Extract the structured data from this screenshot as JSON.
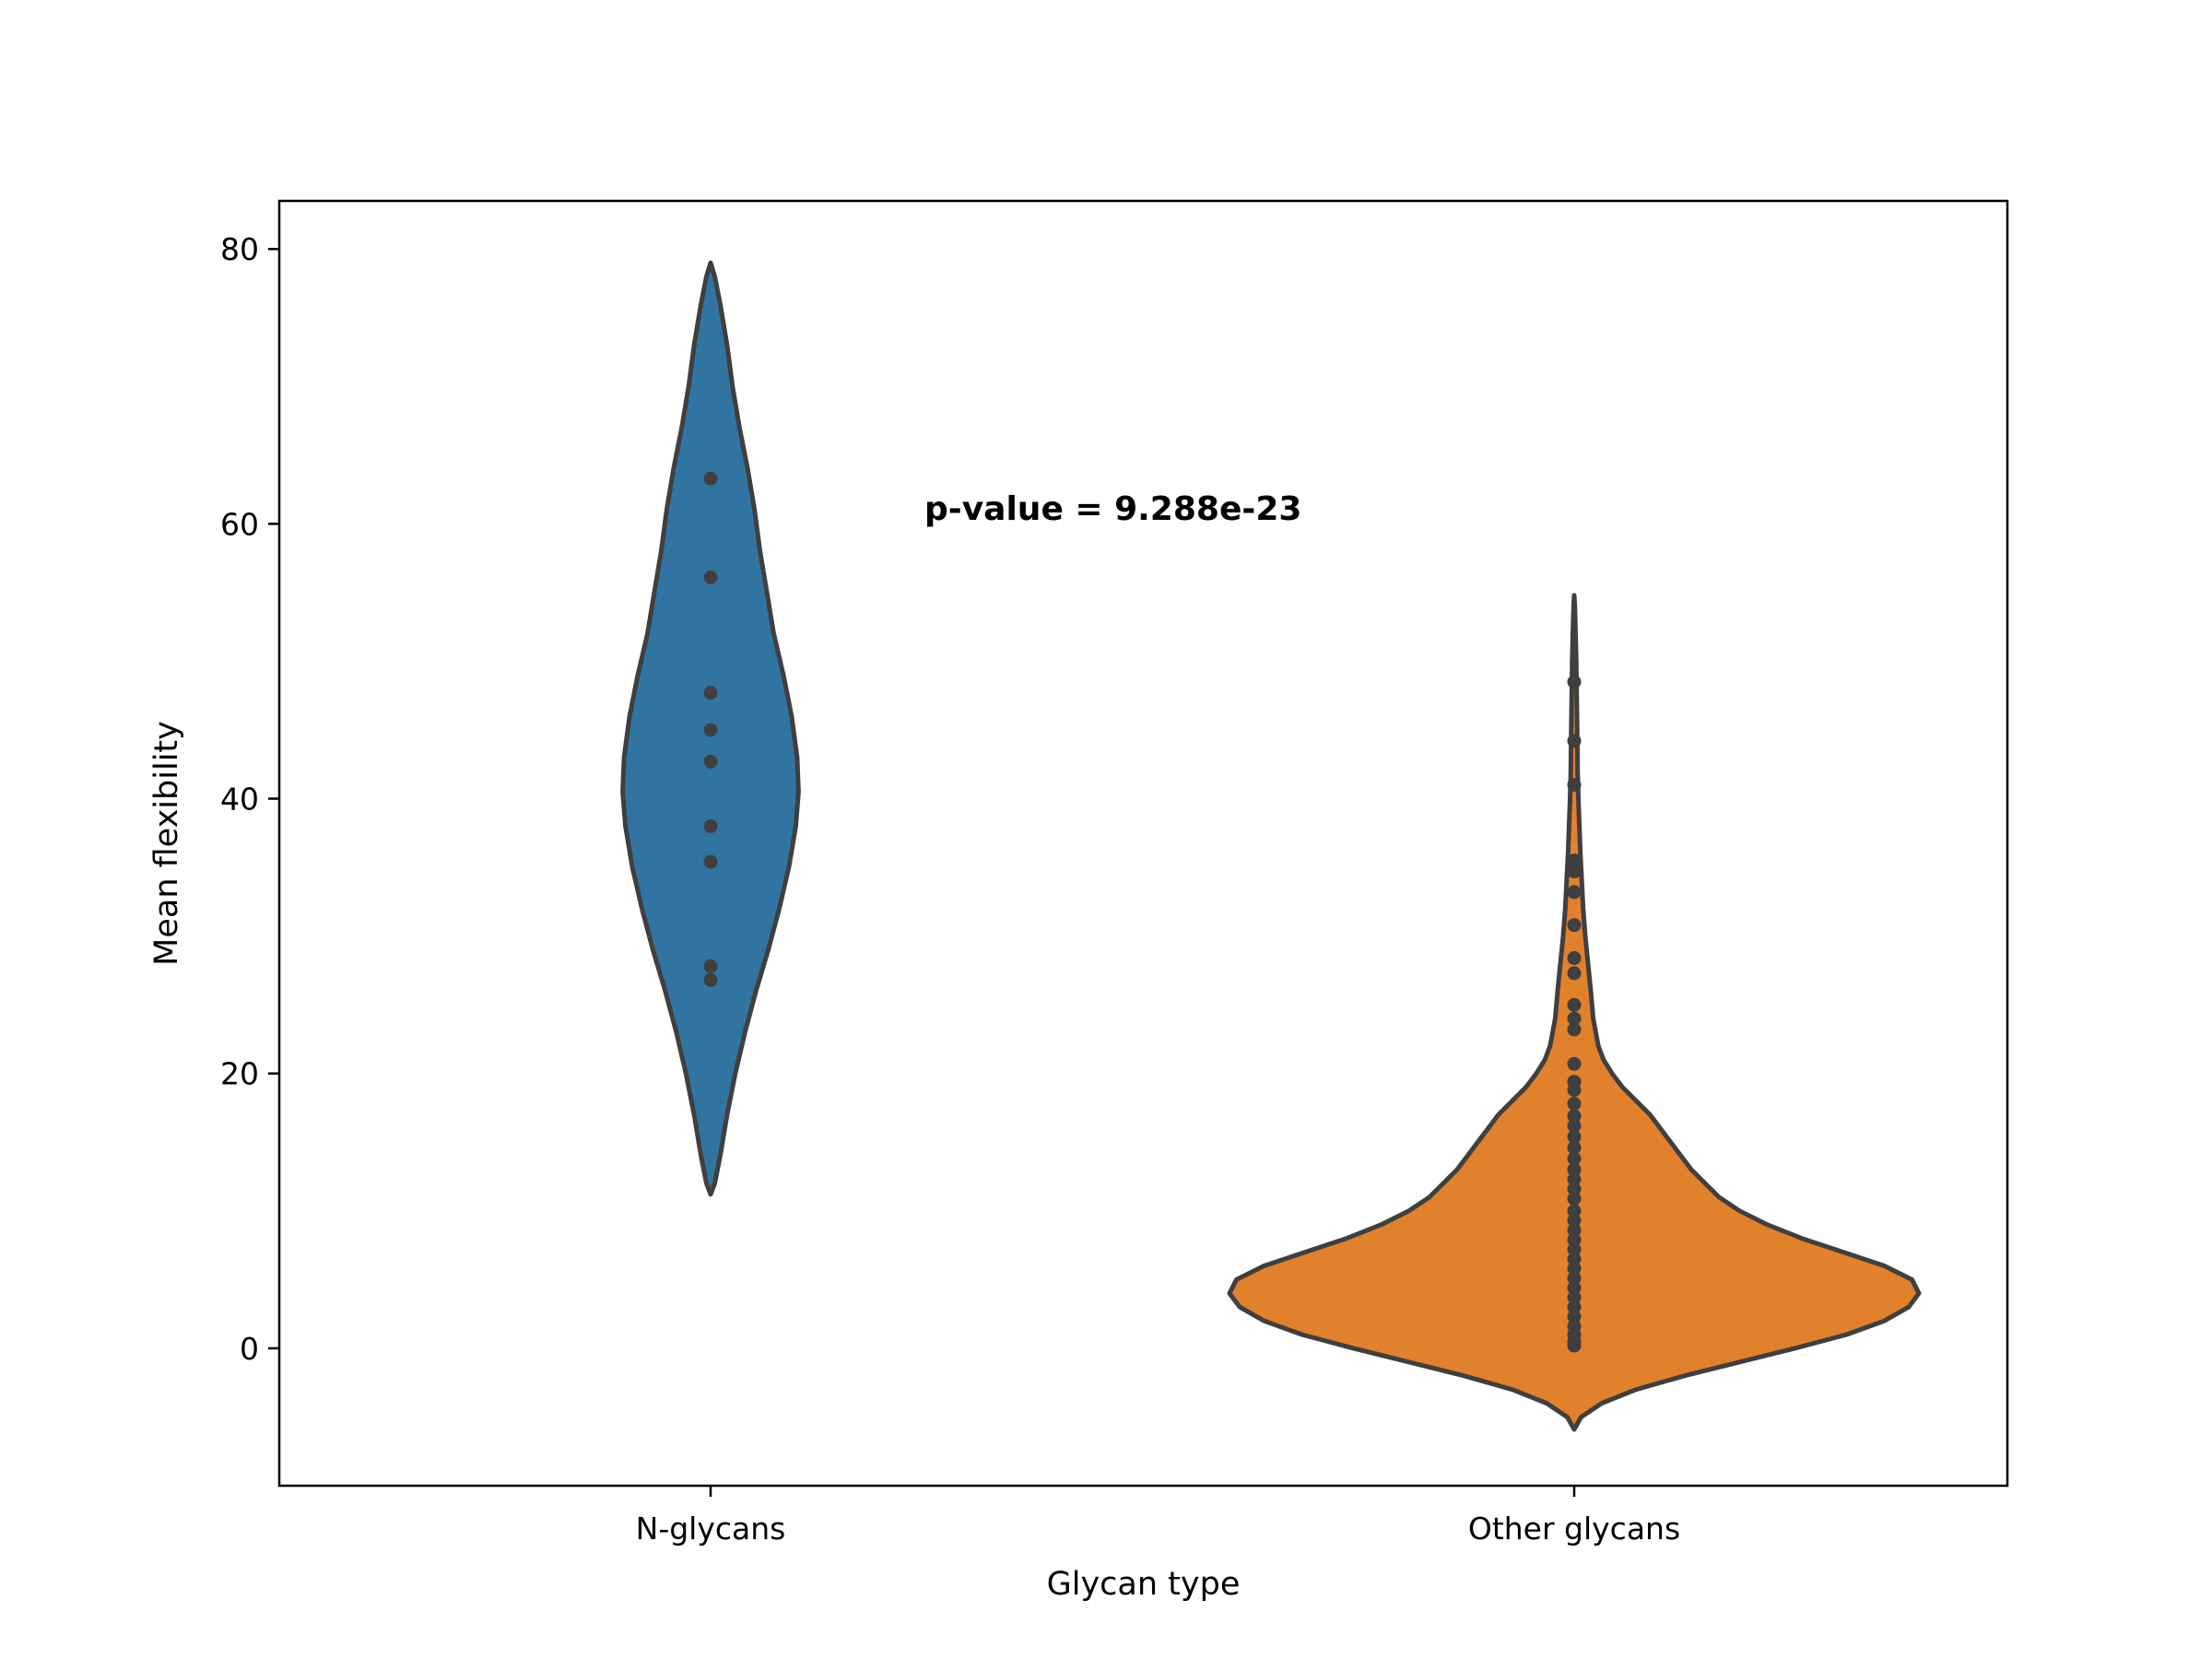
{
  "chart_data": {
    "type": "violin",
    "xlabel": "Glycan type",
    "ylabel": "Mean flexibility",
    "ylim": [
      -10,
      83.5
    ],
    "yticks": [
      0,
      20,
      40,
      60,
      80
    ],
    "grid": false,
    "annotation": "p-value = 9.288e-23",
    "categories": [
      "N-glycans",
      "Other glycans"
    ],
    "series": [
      {
        "category": "N-glycans",
        "color": "#3274a1",
        "violin_range": [
          11.2,
          79
        ],
        "profile": [
          [
            11.2,
            0.0
          ],
          [
            12,
            0.03
          ],
          [
            14,
            0.07
          ],
          [
            17,
            0.12
          ],
          [
            20,
            0.18
          ],
          [
            23,
            0.25
          ],
          [
            26,
            0.33
          ],
          [
            29,
            0.42
          ],
          [
            32,
            0.5
          ],
          [
            35,
            0.57
          ],
          [
            38,
            0.62
          ],
          [
            40.5,
            0.64
          ],
          [
            43,
            0.63
          ],
          [
            46,
            0.59
          ],
          [
            49,
            0.53
          ],
          [
            52,
            0.46
          ],
          [
            55,
            0.41
          ],
          [
            58,
            0.36
          ],
          [
            61,
            0.32
          ],
          [
            64,
            0.27
          ],
          [
            67,
            0.21
          ],
          [
            70,
            0.16
          ],
          [
            73,
            0.12
          ],
          [
            76,
            0.07
          ],
          [
            78,
            0.03
          ],
          [
            79,
            0.0
          ]
        ],
        "points": [
          63.3,
          56.1,
          47.7,
          45.0,
          42.7,
          38.0,
          35.4,
          27.8,
          26.8
        ]
      },
      {
        "category": "Other glycans",
        "color": "#e1812c",
        "violin_range": [
          -5.9,
          54.8
        ],
        "profile": [
          [
            -5.9,
            0.0
          ],
          [
            -5,
            0.02
          ],
          [
            -4,
            0.08
          ],
          [
            -3,
            0.18
          ],
          [
            -2,
            0.32
          ],
          [
            -1,
            0.48
          ],
          [
            0,
            0.64
          ],
          [
            1,
            0.79
          ],
          [
            2,
            0.9
          ],
          [
            3,
            0.97
          ],
          [
            4,
            1.0
          ],
          [
            5,
            0.98
          ],
          [
            6,
            0.9
          ],
          [
            7,
            0.78
          ],
          [
            8,
            0.66
          ],
          [
            9,
            0.56
          ],
          [
            10,
            0.48
          ],
          [
            11,
            0.42
          ],
          [
            12,
            0.38
          ],
          [
            13,
            0.34
          ],
          [
            14,
            0.31
          ],
          [
            15,
            0.28
          ],
          [
            16,
            0.25
          ],
          [
            17,
            0.22
          ],
          [
            18,
            0.18
          ],
          [
            19,
            0.14
          ],
          [
            20,
            0.11
          ],
          [
            21,
            0.085
          ],
          [
            22,
            0.07
          ],
          [
            24,
            0.055
          ],
          [
            26,
            0.048
          ],
          [
            28,
            0.04
          ],
          [
            30,
            0.032
          ],
          [
            32,
            0.026
          ],
          [
            34,
            0.022
          ],
          [
            36,
            0.018
          ],
          [
            38,
            0.015
          ],
          [
            40,
            0.012
          ],
          [
            42,
            0.01
          ],
          [
            44,
            0.009
          ],
          [
            46,
            0.008
          ],
          [
            48,
            0.007
          ],
          [
            50,
            0.006
          ],
          [
            52,
            0.004
          ],
          [
            54,
            0.002
          ],
          [
            54.8,
            0.0
          ]
        ],
        "points": [
          48.5,
          44.2,
          41.0,
          35.5,
          34.7,
          33.2,
          30.8,
          28.4,
          27.3,
          25.0,
          24.0,
          23.2,
          20.7,
          19.4,
          18.8,
          17.8,
          16.9,
          16.2,
          15.4,
          14.6,
          13.8,
          13.0,
          12.3,
          11.6,
          10.9,
          10.0,
          9.3,
          8.6,
          7.9,
          7.2,
          6.5,
          5.8,
          5.1,
          4.4,
          3.7,
          3.0,
          2.3,
          1.6,
          1.0,
          0.5,
          0.2
        ]
      }
    ]
  }
}
